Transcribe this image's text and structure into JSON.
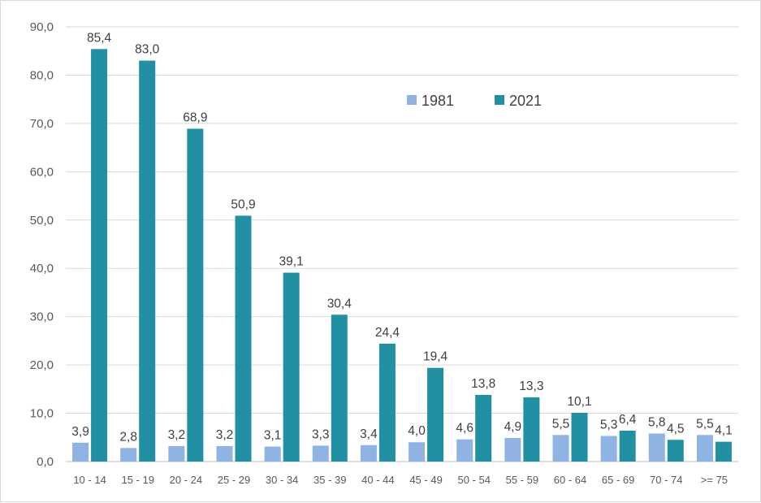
{
  "chart_data": {
    "type": "bar",
    "title": "",
    "xlabel": "",
    "ylabel": "",
    "ylim": [
      0,
      90
    ],
    "yticks": [
      "0,0",
      "10,0",
      "20,0",
      "30,0",
      "40,0",
      "50,0",
      "60,0",
      "70,0",
      "80,0",
      "90,0"
    ],
    "grid": true,
    "legend_position": "top-right",
    "categories": [
      "10 - 14",
      "15 - 19",
      "20 - 24",
      "25 - 29",
      "30 - 34",
      "35 - 39",
      "40 - 44",
      "45 - 49",
      "50 - 54",
      "55 - 59",
      "60 - 64",
      "65 - 69",
      "70 - 74",
      ">= 75"
    ],
    "series": [
      {
        "name": "1981",
        "color": "#8FB4E3",
        "values": [
          3.9,
          2.8,
          3.2,
          3.2,
          3.1,
          3.3,
          3.4,
          4.0,
          4.6,
          4.9,
          5.5,
          5.3,
          5.8,
          5.5
        ],
        "labels": [
          "3,9",
          "2,8",
          "3,2",
          "3,2",
          "3,1",
          "3,3",
          "3,4",
          "4,0",
          "4,6",
          "4,9",
          "5,5",
          "5,3",
          "5,8",
          "5,5"
        ]
      },
      {
        "name": "2021",
        "color": "#2190A3",
        "values": [
          85.4,
          83.0,
          68.9,
          50.9,
          39.1,
          30.4,
          24.4,
          19.4,
          13.8,
          13.3,
          10.1,
          6.4,
          4.5,
          4.1
        ],
        "labels": [
          "85,4",
          "83,0",
          "68,9",
          "50,9",
          "39,1",
          "30,4",
          "24,4",
          "19,4",
          "13,8",
          "13,3",
          "10,1",
          "6,4",
          "4,5",
          "4,1"
        ]
      }
    ]
  }
}
